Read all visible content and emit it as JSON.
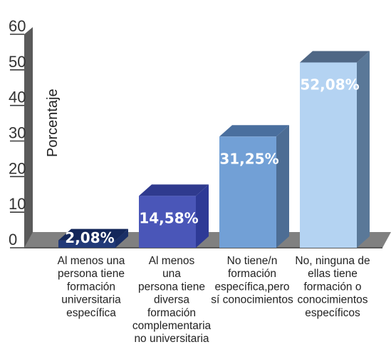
{
  "chart_data": {
    "type": "bar",
    "ylabel": "Porcentaje",
    "ylim": [
      0,
      60
    ],
    "y_ticks": [
      "0",
      "10",
      "20",
      "30",
      "40",
      "50",
      "60"
    ],
    "categories": [
      [
        "Al menos una",
        "persona tiene",
        "formación",
        "universitaria",
        "específica"
      ],
      [
        "Al menos",
        "una",
        "persona tiene",
        "diversa",
        "formación",
        "complementaria",
        "no universitaria"
      ],
      [
        "No tiene/n",
        "formación",
        "específica,pero",
        "sí conocimientos"
      ],
      [
        "No, ninguna de",
        "ellas tiene",
        "formación o",
        "conocimientos",
        "específicos"
      ]
    ],
    "values": [
      2.08,
      14.58,
      31.25,
      52.08
    ],
    "value_labels": [
      "2,08%",
      "14,58%",
      "31,25%",
      "52,08%"
    ],
    "colors": {
      "bar_fronts": [
        "#223a78",
        "#4a56b8",
        "#72a0d6",
        "#b4d3f2"
      ],
      "bar_tops": [
        "#14275a",
        "#2f3a8e",
        "#4a6f9e",
        "#4f6785"
      ],
      "bar_sides": [
        "#1a2f66",
        "#2e3a96",
        "#4d6d94",
        "#5a7898"
      ],
      "axis": "#808080",
      "axis_dark": "#5a5a5a"
    }
  }
}
